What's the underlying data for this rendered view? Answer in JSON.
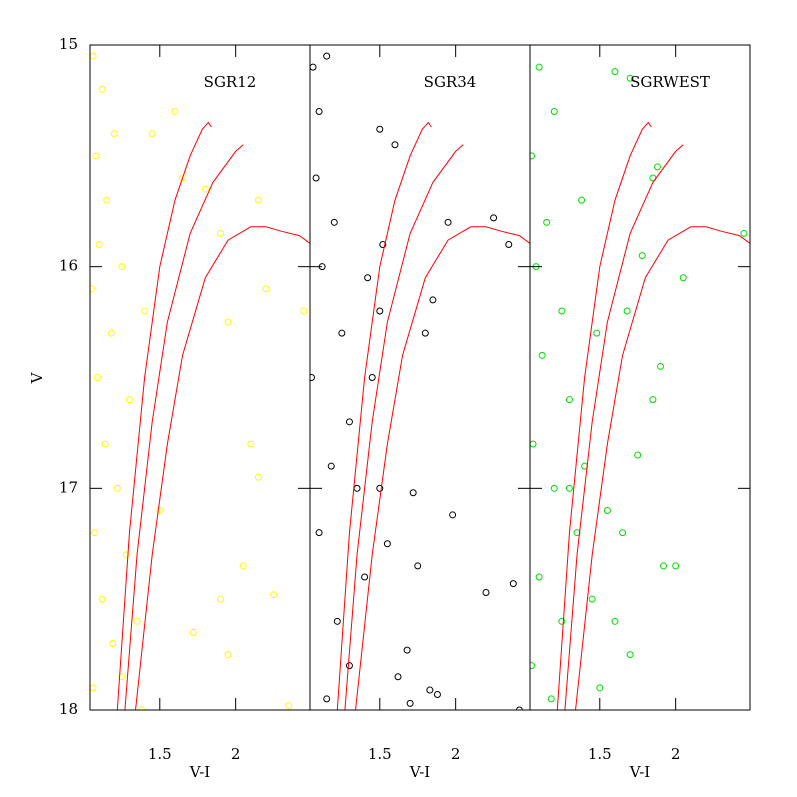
{
  "chart_data": [
    {
      "type": "scatter",
      "title": "SGR12",
      "xlabel": "V-I",
      "ylabel": "V",
      "color": "#ffff00",
      "xlim": [
        1.04,
        2.49
      ],
      "ylim": [
        18,
        15
      ],
      "xticks": [
        1.5,
        2
      ],
      "yticks": [
        15,
        16,
        17,
        18
      ],
      "x": [
        1.06,
        1.12,
        1.08,
        1.15,
        1.1,
        1.2,
        1.05,
        1.18,
        1.25,
        1.09,
        1.3,
        1.14,
        1.22,
        1.07,
        1.28,
        1.12,
        1.19,
        1.06,
        1.25,
        1.35,
        1.45,
        1.6,
        1.65,
        1.8,
        1.9,
        2.15,
        2.2,
        2.45,
        1.95,
        2.1,
        2.15,
        1.9,
        1.72,
        1.95,
        2.05,
        2.25,
        1.4,
        1.5,
        1.38,
        2.35
      ],
      "values": [
        15.05,
        15.2,
        15.5,
        15.7,
        15.9,
        15.4,
        16.1,
        16.3,
        16.0,
        16.5,
        16.6,
        16.8,
        17.0,
        17.2,
        17.3,
        17.5,
        17.7,
        17.9,
        17.85,
        17.6,
        15.4,
        15.3,
        15.6,
        15.65,
        15.85,
        15.7,
        16.1,
        16.2,
        16.25,
        16.8,
        16.95,
        17.5,
        17.65,
        17.75,
        17.35,
        17.48,
        16.2,
        17.1,
        18.0,
        17.98
      ],
      "curves": [
        {
          "color": "#ff0000",
          "x": [
            1.22,
            1.3,
            1.4,
            1.5,
            1.6,
            1.7,
            1.78,
            1.82,
            1.84
          ],
          "values": [
            18,
            17.2,
            16.5,
            16.0,
            15.7,
            15.5,
            15.38,
            15.35,
            15.37
          ]
        },
        {
          "color": "#ff0000",
          "x": [
            1.27,
            1.35,
            1.45,
            1.55,
            1.7,
            1.85,
            2.0,
            2.05
          ],
          "values": [
            18,
            17.3,
            16.7,
            16.25,
            15.85,
            15.62,
            15.48,
            15.45
          ]
        },
        {
          "color": "#ff0000",
          "x": [
            1.34,
            1.45,
            1.55,
            1.65,
            1.8,
            1.95,
            2.1,
            2.2,
            2.3,
            2.42,
            2.5
          ],
          "values": [
            18,
            17.3,
            16.8,
            16.4,
            16.05,
            15.88,
            15.82,
            15.82,
            15.84,
            15.86,
            15.9
          ]
        }
      ]
    },
    {
      "type": "scatter",
      "title": "SGR34",
      "xlabel": "V-I",
      "color": "#000000",
      "xlim": [
        1.04,
        2.49
      ],
      "ylim": [
        18,
        15
      ],
      "xticks": [
        1.5,
        2
      ],
      "x": [
        1.06,
        1.1,
        1.15,
        1.08,
        1.2,
        1.12,
        1.25,
        1.05,
        1.3,
        1.18,
        1.35,
        1.1,
        1.4,
        1.22,
        1.3,
        1.15,
        1.45,
        1.5,
        1.42,
        1.52,
        1.6,
        1.5,
        1.85,
        1.95,
        2.25,
        2.35,
        1.8,
        1.5,
        1.55,
        1.72,
        1.75,
        1.98,
        2.2,
        2.38,
        1.68,
        1.83,
        1.88,
        1.62,
        1.7,
        2.42
      ],
      "values": [
        15.1,
        15.3,
        15.05,
        15.6,
        15.8,
        16.0,
        16.3,
        16.5,
        16.7,
        16.9,
        17.0,
        17.2,
        17.4,
        17.6,
        17.8,
        17.95,
        16.5,
        16.2,
        16.05,
        15.9,
        15.45,
        15.38,
        16.15,
        15.8,
        15.78,
        15.9,
        16.3,
        17.0,
        17.25,
        17.02,
        17.35,
        17.12,
        17.47,
        17.43,
        17.73,
        17.91,
        17.93,
        17.85,
        17.97,
        18.0
      ],
      "curves": [
        {
          "color": "#ff0000",
          "x": [
            1.22,
            1.3,
            1.4,
            1.5,
            1.6,
            1.7,
            1.78,
            1.82,
            1.84
          ],
          "values": [
            18,
            17.2,
            16.5,
            16.0,
            15.7,
            15.5,
            15.38,
            15.35,
            15.37
          ]
        },
        {
          "color": "#ff0000",
          "x": [
            1.27,
            1.35,
            1.45,
            1.55,
            1.7,
            1.85,
            2.0,
            2.05
          ],
          "values": [
            18,
            17.3,
            16.7,
            16.25,
            15.85,
            15.62,
            15.48,
            15.45
          ]
        },
        {
          "color": "#ff0000",
          "x": [
            1.34,
            1.45,
            1.55,
            1.65,
            1.8,
            1.95,
            2.1,
            2.2,
            2.3,
            2.42,
            2.5
          ],
          "values": [
            18,
            17.3,
            16.8,
            16.4,
            16.05,
            15.88,
            15.82,
            15.82,
            15.84,
            15.86,
            15.9
          ]
        }
      ]
    },
    {
      "type": "scatter",
      "title": "SGRWEST",
      "xlabel": "V-I",
      "color": "#00dd00",
      "xlim": [
        1.04,
        2.49
      ],
      "ylim": [
        18,
        15
      ],
      "xticks": [
        1.5,
        2
      ],
      "x": [
        1.6,
        1.7,
        1.85,
        1.78,
        1.88,
        1.68,
        2.05,
        1.85,
        1.9,
        1.75,
        1.65,
        1.92,
        2.0,
        1.6,
        1.7,
        1.5,
        2.45,
        1.3,
        1.1,
        1.2,
        1.05,
        1.15,
        1.08,
        1.25,
        1.12,
        1.3,
        1.06,
        1.2,
        1.35,
        1.1,
        1.25,
        1.05,
        1.18,
        1.4,
        1.45,
        1.55,
        1.48,
        1.38
      ],
      "values": [
        15.12,
        15.15,
        15.6,
        15.95,
        15.55,
        16.2,
        16.05,
        16.6,
        16.45,
        16.85,
        17.2,
        17.35,
        17.35,
        17.6,
        17.75,
        17.9,
        15.85,
        17.0,
        15.1,
        15.3,
        15.5,
        15.8,
        16.0,
        16.2,
        16.4,
        16.6,
        16.8,
        17.0,
        17.2,
        17.4,
        17.6,
        17.8,
        17.95,
        16.9,
        17.5,
        17.1,
        16.3,
        15.7
      ],
      "curves": [
        {
          "color": "#ff0000",
          "x": [
            1.22,
            1.3,
            1.4,
            1.5,
            1.6,
            1.7,
            1.78,
            1.82,
            1.84
          ],
          "values": [
            18,
            17.2,
            16.5,
            16.0,
            15.7,
            15.5,
            15.38,
            15.35,
            15.37
          ]
        },
        {
          "color": "#ff0000",
          "x": [
            1.27,
            1.35,
            1.45,
            1.55,
            1.7,
            1.85,
            2.0,
            2.05
          ],
          "values": [
            18,
            17.3,
            16.7,
            16.25,
            15.85,
            15.62,
            15.48,
            15.45
          ]
        },
        {
          "color": "#ff0000",
          "x": [
            1.34,
            1.45,
            1.55,
            1.65,
            1.8,
            1.95,
            2.1,
            2.2,
            2.3,
            2.42,
            2.5
          ],
          "values": [
            18,
            17.3,
            16.8,
            16.4,
            16.05,
            15.88,
            15.82,
            15.82,
            15.84,
            15.86,
            15.9
          ]
        }
      ]
    }
  ]
}
